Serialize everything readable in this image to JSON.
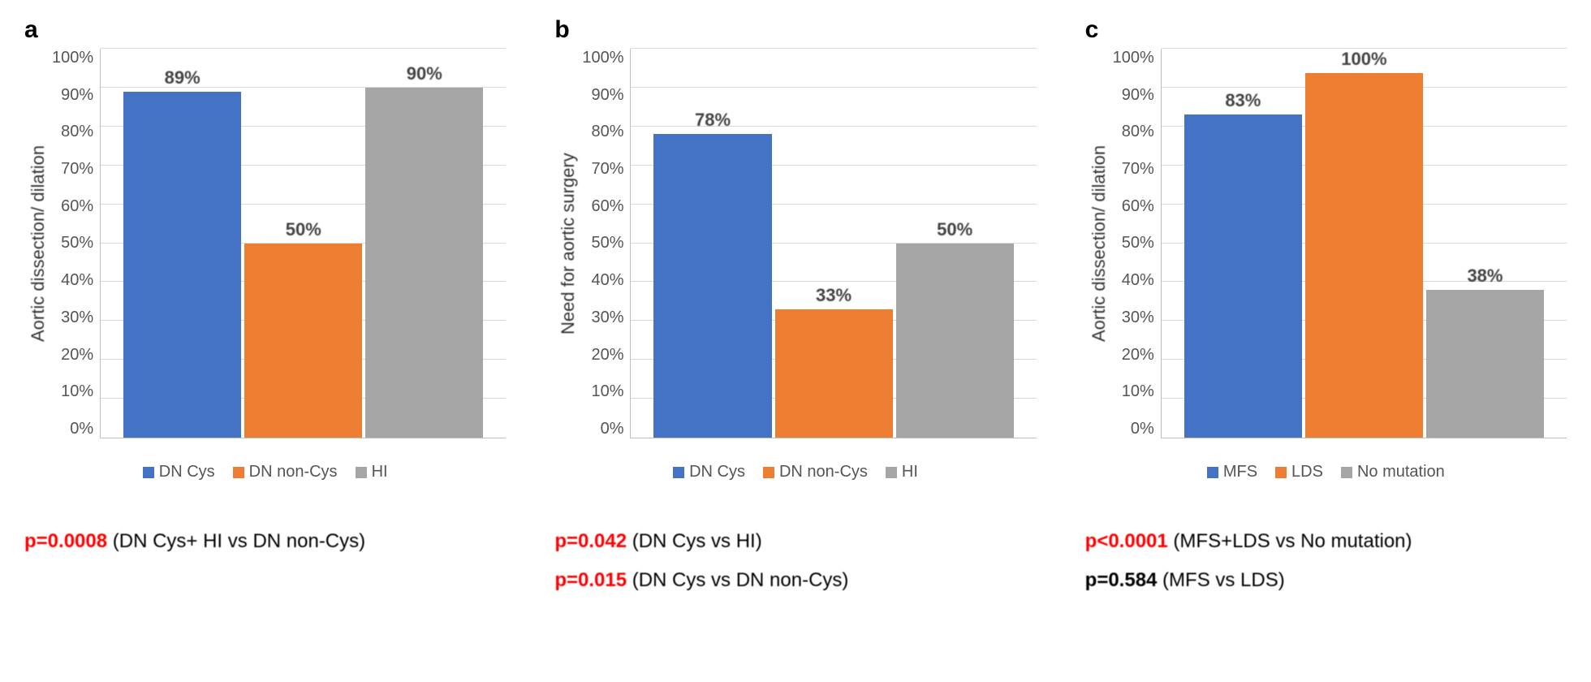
{
  "palette": {
    "blue": "#4472c4",
    "orange": "#ed7d31",
    "gray": "#a5a5a5",
    "grid": "#d9d9d9",
    "axis": "#bfbfbf",
    "text": "#595959",
    "background": "#ffffff",
    "pred": "#ff0000"
  },
  "axis": {
    "ylim": [
      0,
      100
    ],
    "ytick_step": 10,
    "ytick_suffix": "%",
    "yticks": [
      "100%",
      "90%",
      "80%",
      "70%",
      "60%",
      "50%",
      "40%",
      "30%",
      "20%",
      "10%",
      "0%"
    ]
  },
  "typography": {
    "panel_label_fontsize": 30,
    "ylabel_fontsize": 22,
    "tick_fontsize": 20,
    "bar_label_fontsize": 22,
    "legend_fontsize": 20,
    "pval_fontsize": 24,
    "font_family": "Arial"
  },
  "panels": {
    "a": {
      "label": "a",
      "ylabel": "Aortic dissection/ dilation",
      "type": "bar",
      "categories": [
        "DN Cys",
        "DN non-Cys",
        "HI"
      ],
      "values": [
        89,
        50,
        90
      ],
      "value_labels": [
        "89%",
        "50%",
        "90%"
      ],
      "colors": [
        "#4472c4",
        "#ed7d31",
        "#a5a5a5"
      ],
      "legend": [
        {
          "label": "DN Cys",
          "color": "#4472c4"
        },
        {
          "label": "DN non-Cys",
          "color": "#ed7d31"
        },
        {
          "label": "HI",
          "color": "#a5a5a5"
        }
      ],
      "pvalues": [
        {
          "p": "p=0.0008",
          "rest": " (DN Cys+ HI vs DN non-Cys)",
          "highlight": "red"
        }
      ]
    },
    "b": {
      "label": "b",
      "ylabel": "Need for aortic surgery",
      "type": "bar",
      "categories": [
        "DN Cys",
        "DN non-Cys",
        "HI"
      ],
      "values": [
        78,
        33,
        50
      ],
      "value_labels": [
        "78%",
        "33%",
        "50%"
      ],
      "colors": [
        "#4472c4",
        "#ed7d31",
        "#a5a5a5"
      ],
      "legend": [
        {
          "label": "DN Cys",
          "color": "#4472c4"
        },
        {
          "label": "DN non-Cys",
          "color": "#ed7d31"
        },
        {
          "label": "HI",
          "color": "#a5a5a5"
        }
      ],
      "pvalues": [
        {
          "p": "p=0.042",
          "rest": " (DN Cys vs HI)",
          "highlight": "red"
        },
        {
          "p": "p=0.015",
          "rest": " (DN Cys vs DN non-Cys)",
          "highlight": "red"
        }
      ]
    },
    "c": {
      "label": "c",
      "ylabel": "Aortic dissection/ dilation",
      "type": "bar",
      "categories": [
        "MFS",
        "LDS",
        "No mutation"
      ],
      "values": [
        83,
        100,
        38
      ],
      "value_labels": [
        "83%",
        "100%",
        "38%"
      ],
      "colors": [
        "#4472c4",
        "#ed7d31",
        "#a5a5a5"
      ],
      "legend": [
        {
          "label": "MFS",
          "color": "#4472c4"
        },
        {
          "label": "LDS",
          "color": "#ed7d31"
        },
        {
          "label": "No mutation",
          "color": "#a5a5a5"
        }
      ],
      "pvalues": [
        {
          "p": "p<0.0001",
          "rest": " (MFS+LDS vs No mutation)",
          "highlight": "red"
        },
        {
          "p": "p=0.584",
          "rest": " (MFS vs LDS)",
          "highlight": "black"
        }
      ]
    }
  }
}
